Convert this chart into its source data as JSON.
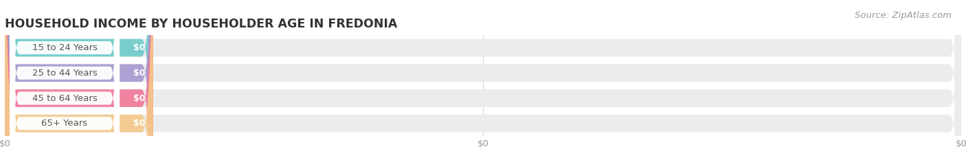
{
  "title": "HOUSEHOLD INCOME BY HOUSEHOLDER AGE IN FREDONIA",
  "source": "Source: ZipAtlas.com",
  "categories": [
    "15 to 24 Years",
    "25 to 44 Years",
    "45 to 64 Years",
    "65+ Years"
  ],
  "values": [
    0,
    0,
    0,
    0
  ],
  "bar_colors": [
    "#6dcbca",
    "#a599d0",
    "#f07898",
    "#f5c98a"
  ],
  "bar_bg_color": "#ececec",
  "background_color": "#ffffff",
  "title_fontsize": 12.5,
  "source_fontsize": 9.5,
  "cat_fontsize": 9.5,
  "val_fontsize": 9,
  "tick_fontsize": 9.5,
  "fig_width": 14.06,
  "fig_height": 2.33
}
